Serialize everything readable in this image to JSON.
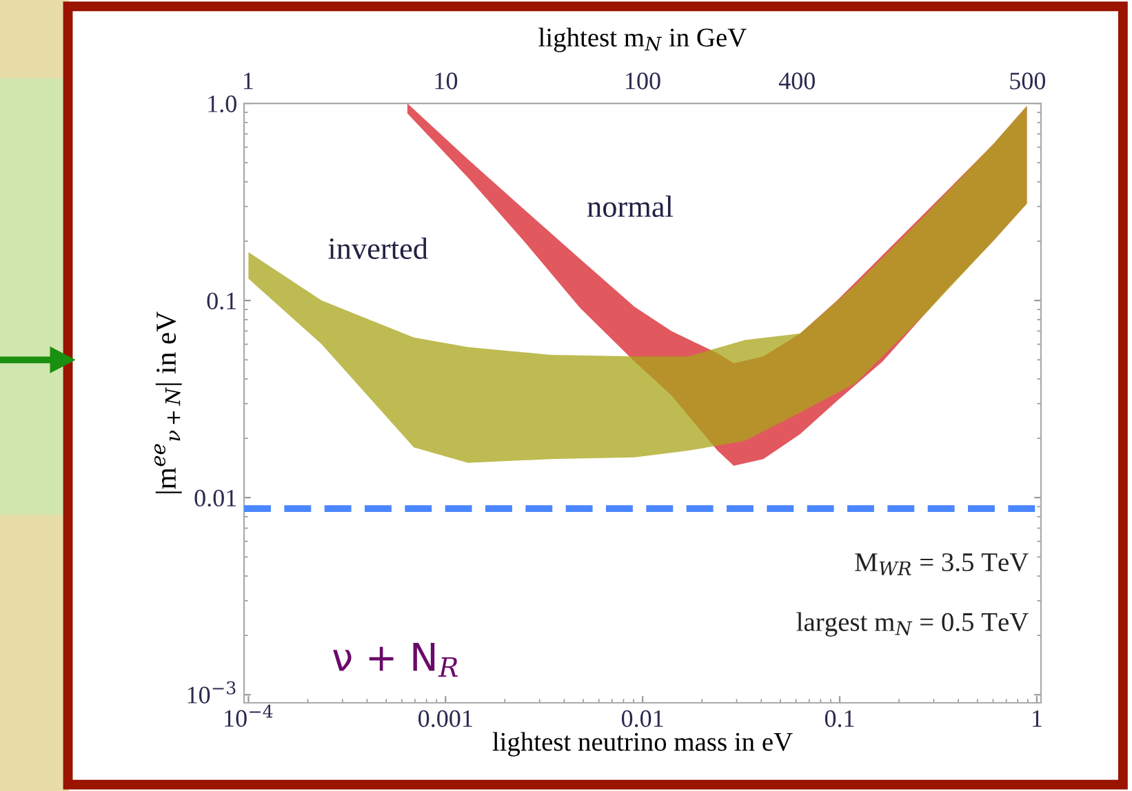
{
  "chart_data": {
    "type": "area",
    "xlabel": "lightest neutrino mass in eV",
    "ylabel": "|m$^{ee}$$_{ν+N}$| in eV",
    "x2label": "lightest m$_{N}$ in GeV",
    "log": "xy",
    "grid": false,
    "xlim": [
      9.5e-05,
      1.05
    ],
    "ylim": [
      0.00091,
      1.0
    ],
    "xticks": [
      {
        "value": 0.0001,
        "label": "10$^{−4}$"
      },
      0.001,
      0.01,
      0.1,
      1
    ],
    "yticks": [
      {
        "value": 0.001,
        "label": "10$^{−3}$"
      },
      0.01,
      0.1,
      {
        "value": 1.0,
        "label": "1.0"
      }
    ],
    "series": [
      {
        "color": "#d8202a",
        "x": [
          0.00064,
          0.0013,
          0.0025,
          0.0048,
          0.0091,
          0.014,
          0.024,
          0.029,
          0.041,
          0.063,
          0.097,
          0.165,
          0.35,
          0.6,
          0.89
        ],
        "values": [
          null,
          null,
          null,
          null,
          null,
          null,
          null,
          null,
          null,
          null,
          null,
          null,
          null,
          null,
          null
        ],
        "upper": [
          1.0,
          0.52,
          0.29,
          0.163,
          0.093,
          0.07,
          0.054,
          0.048,
          0.052,
          0.068,
          0.1,
          0.17,
          0.36,
          0.62,
          0.97
        ],
        "lower": [
          0.89,
          0.42,
          0.2,
          0.092,
          0.049,
          0.033,
          0.0173,
          0.0145,
          0.0157,
          0.021,
          0.031,
          0.049,
          0.114,
          0.2,
          0.31
        ]
      },
      {
        "color": "#a8a418",
        "x": [
          0.0001,
          0.000235,
          0.00069,
          0.0013,
          0.0034,
          0.0091,
          0.017,
          0.033,
          0.063,
          0.12,
          0.27,
          0.6,
          0.89
        ],
        "values": [
          null,
          null,
          null,
          null,
          null,
          null,
          null,
          null,
          null,
          null,
          null,
          null,
          null
        ],
        "upper": [
          0.176,
          0.1,
          0.065,
          0.058,
          0.053,
          0.052,
          0.052,
          0.063,
          0.068,
          0.12,
          0.27,
          0.62,
          0.97
        ],
        "lower": [
          0.129,
          0.06,
          0.018,
          0.015,
          0.0157,
          0.016,
          0.0173,
          0.0194,
          0.027,
          0.038,
          0.085,
          0.2,
          0.31
        ]
      }
    ],
    "ref_lines": [
      {
        "axis": "y",
        "value": 0.0088,
        "color": "#4a86ff",
        "line_style": "dashed"
      }
    ],
    "annotations": [
      "inverted",
      "normal",
      "M$_{WR}$ = 3.5 TeV",
      "largest m$_{N}$ = 0.5 TeV",
      "ν + N$_{R}$",
      "1",
      "10",
      "100",
      "400",
      "500"
    ]
  }
}
